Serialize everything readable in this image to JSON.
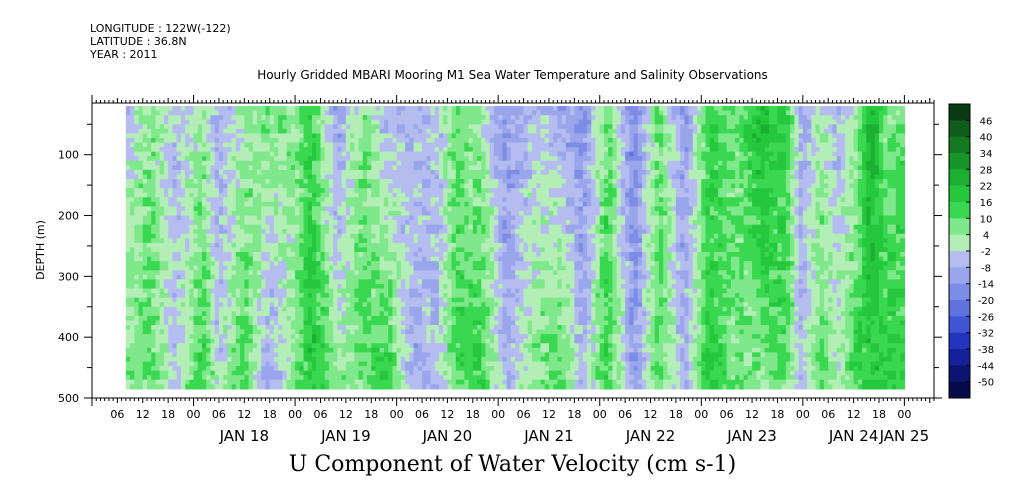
{
  "header": {
    "longitude": "LONGITUDE : 122W(-122)",
    "latitude": "LATITUDE : 36.8N",
    "year": "YEAR : 2011",
    "title": "Hourly Gridded MBARI Mooring M1 Sea Water Temperature and Salinity Observations"
  },
  "chart_data": {
    "type": "heatmap",
    "title": "Hourly Gridded MBARI Mooring M1 Sea Water Temperature and Salinity Observations",
    "subtitle": "U Component of Water Velocity (cm s-1)",
    "ylabel": "DEPTH (m)",
    "ylim": [
      500,
      15
    ],
    "y_ticks": [
      100,
      200,
      300,
      400,
      500
    ],
    "data_extent_depth": [
      20,
      485
    ],
    "x_hour_ticks": [
      "06",
      "12",
      "18",
      "00",
      "06",
      "12",
      "18",
      "00",
      "06",
      "12",
      "18",
      "00",
      "06",
      "12",
      "18",
      "00",
      "06",
      "12",
      "18",
      "00",
      "06",
      "12",
      "18",
      "00",
      "06",
      "12",
      "18",
      "00",
      "06",
      "12",
      "18",
      "00"
    ],
    "x_hour_tick_hours": [
      6,
      12,
      18,
      24,
      30,
      36,
      42,
      48,
      54,
      60,
      66,
      72,
      78,
      84,
      90,
      96,
      102,
      108,
      114,
      120,
      126,
      132,
      138,
      144,
      150,
      156,
      162,
      168,
      174,
      180,
      186,
      192
    ],
    "x_day_labels": [
      "JAN 18",
      "JAN 19",
      "JAN 20",
      "JAN 21",
      "JAN 22",
      "JAN 23",
      "JAN 24",
      "JAN 25"
    ],
    "x_day_label_hours": [
      36,
      60,
      84,
      108,
      132,
      156,
      180,
      192
    ],
    "x_range_hours": [
      0,
      199
    ],
    "data_extent_hours": [
      8,
      192
    ],
    "time_origin": "JAN 17 00:00",
    "colorbar": {
      "levels": [
        46,
        40,
        34,
        28,
        22,
        16,
        10,
        4,
        -2,
        -8,
        -14,
        -20,
        -26,
        -32,
        -38,
        -44,
        -50
      ],
      "colors": [
        "#0a3a12",
        "#0f5c1c",
        "#137a22",
        "#17952a",
        "#1bb031",
        "#25c83c",
        "#3ad851",
        "#7fe88a",
        "#b4eeb7",
        "#b5bdf0",
        "#9aa6ec",
        "#7d8ce5",
        "#5f72dd",
        "#3f55d3",
        "#2534bf",
        "#16209a",
        "#0b1470",
        "#050a4a"
      ]
    },
    "bands": [
      {
        "hour": 8,
        "surface": -3,
        "deep": 6
      },
      {
        "hour": 14,
        "surface": 7,
        "deep": 10
      },
      {
        "hour": 20,
        "surface": -6,
        "deep": -4
      },
      {
        "hour": 26,
        "surface": 4,
        "deep": 16
      },
      {
        "hour": 30,
        "surface": -10,
        "deep": -2
      },
      {
        "hour": 36,
        "surface": 2,
        "deep": 14
      },
      {
        "hour": 42,
        "surface": 8,
        "deep": -12
      },
      {
        "hour": 48,
        "surface": 4,
        "deep": 6
      },
      {
        "hour": 52,
        "surface": 14,
        "deep": 20
      },
      {
        "hour": 58,
        "surface": -12,
        "deep": 4
      },
      {
        "hour": 64,
        "surface": 8,
        "deep": 10
      },
      {
        "hour": 70,
        "surface": -8,
        "deep": 16
      },
      {
        "hour": 76,
        "surface": -4,
        "deep": -10
      },
      {
        "hour": 82,
        "surface": -6,
        "deep": -4
      },
      {
        "hour": 86,
        "surface": 10,
        "deep": 12
      },
      {
        "hour": 92,
        "surface": 2,
        "deep": 16
      },
      {
        "hour": 98,
        "surface": -14,
        "deep": -8
      },
      {
        "hour": 104,
        "surface": -4,
        "deep": 6
      },
      {
        "hour": 110,
        "surface": -8,
        "deep": 14
      },
      {
        "hour": 116,
        "surface": -16,
        "deep": -6
      },
      {
        "hour": 122,
        "surface": 10,
        "deep": 16
      },
      {
        "hour": 128,
        "surface": -18,
        "deep": -12
      },
      {
        "hour": 134,
        "surface": 10,
        "deep": 10
      },
      {
        "hour": 140,
        "surface": -14,
        "deep": -8
      },
      {
        "hour": 146,
        "surface": 14,
        "deep": 18
      },
      {
        "hour": 152,
        "surface": 8,
        "deep": 6
      },
      {
        "hour": 158,
        "surface": 22,
        "deep": 6
      },
      {
        "hour": 164,
        "surface": 16,
        "deep": 10
      },
      {
        "hour": 168,
        "surface": -10,
        "deep": -6
      },
      {
        "hour": 172,
        "surface": 4,
        "deep": 12
      },
      {
        "hour": 176,
        "surface": -6,
        "deep": 2
      },
      {
        "hour": 180,
        "surface": -2,
        "deep": 14
      },
      {
        "hour": 184,
        "surface": 26,
        "deep": 16
      },
      {
        "hour": 188,
        "surface": 4,
        "deep": 18
      },
      {
        "hour": 192,
        "surface": 10,
        "deep": 16
      }
    ]
  }
}
